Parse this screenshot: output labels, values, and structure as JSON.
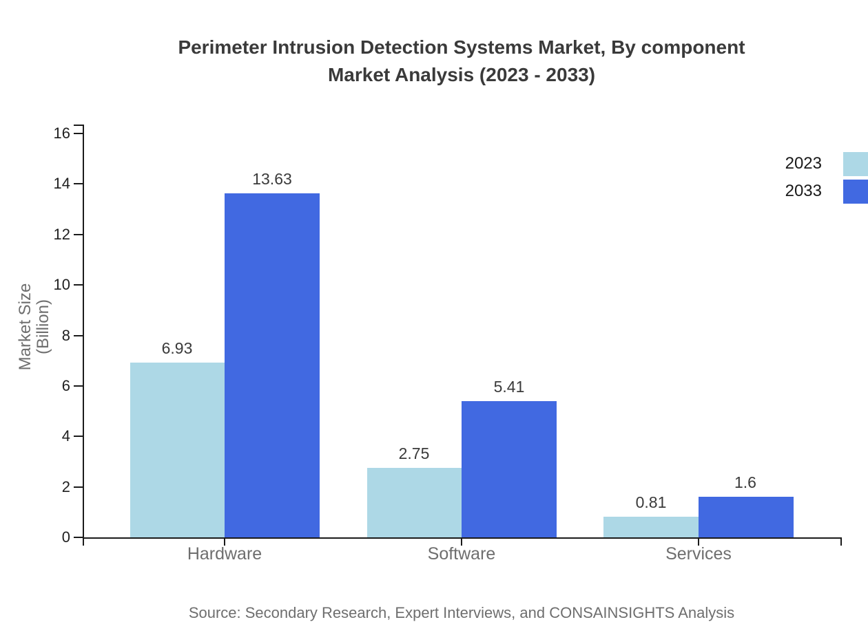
{
  "title": {
    "line1": "Perimeter Intrusion Detection Systems Market, By component",
    "line2": "Market Analysis (2023 - 2033)"
  },
  "y_axis": {
    "label": "Market Size (Billion)"
  },
  "source": "Source: Secondary Research, Expert Interviews, and CONSAINSIGHTS Analysis",
  "colors": {
    "series_2023": "#ADD8E6",
    "series_2033": "#4169E1",
    "axis": "#1a1a1a",
    "title_text": "#3a3a3a",
    "value_text": "#3a3a3a",
    "tick_text": "#1f1f1f",
    "muted_text": "#6e6e6e",
    "background": "#ffffff"
  },
  "legend": {
    "position": "top-right",
    "items": [
      {
        "label": "2023",
        "color": "#ADD8E6"
      },
      {
        "label": "2033",
        "color": "#4169E1"
      }
    ]
  },
  "chart_data": {
    "type": "bar",
    "title": "Perimeter Intrusion Detection Systems Market, By component Market Analysis (2023 - 2033)",
    "categories": [
      "Hardware",
      "Software",
      "Services"
    ],
    "series": [
      {
        "name": "2023",
        "color": "#ADD8E6",
        "values": [
          6.93,
          2.75,
          0.81
        ]
      },
      {
        "name": "2033",
        "color": "#4169E1",
        "values": [
          13.63,
          5.41,
          1.6
        ]
      }
    ],
    "xlabel": "",
    "ylabel": "Market Size (Billion)",
    "ylim": [
      0,
      16.356
    ],
    "yticks": [
      0,
      2,
      4,
      6,
      8,
      10,
      12,
      14,
      16
    ],
    "grid": false,
    "value_labels": true,
    "legend_position": "right-top"
  }
}
